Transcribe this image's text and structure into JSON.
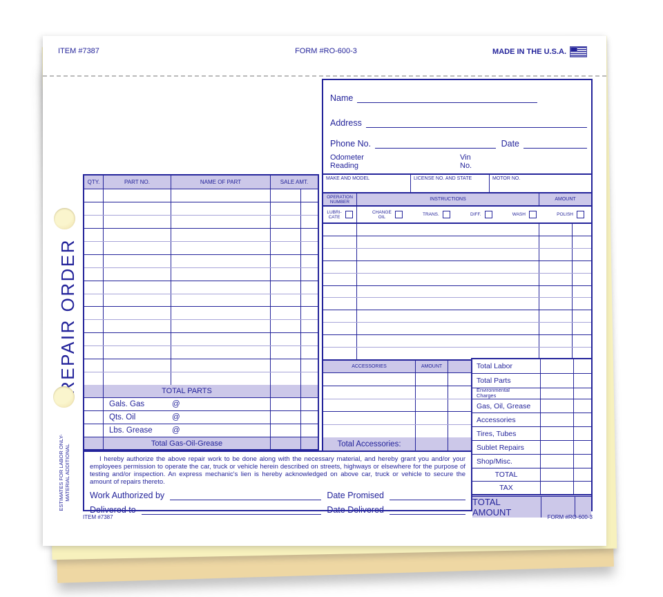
{
  "colors": {
    "ink": "#23239a",
    "header_fill": "#ccc8e9",
    "paper": "#ffffff",
    "copy_sheet_yellow": "#f7f1bd",
    "copy_sheet_tan": "#eed7a3"
  },
  "header": {
    "item_number": "ITEM #7387",
    "form_number": "FORM #RO-600-3",
    "made_in": "MADE IN THE U.S.A.",
    "flag_icon": "us-flag-icon"
  },
  "side": {
    "title": "REPAIR ORDER",
    "estimates_line_1": "ESTIMATES FOR LABOR ONLY-",
    "estimates_line_2": "MATERIAL ADDITIONAL"
  },
  "customer": {
    "name_label": "Name",
    "address_label": "Address",
    "phone_label": "Phone No.",
    "date_label": "Date",
    "odometer_label_line_1": "Odometer",
    "odometer_label_line_2": "Reading",
    "vin_label_line_1": "Vin",
    "vin_label_line_2": "No."
  },
  "vehicle": {
    "make_and_model_label": "MAKE AND MODEL",
    "license_label": "LICENSE NO. AND STATE",
    "motor_label": "MOTOR NO."
  },
  "operations": {
    "op_number_label_line_1": "OPERATION",
    "op_number_label_line_2": "NUMBER",
    "instructions_label": "INSTRUCTIONS",
    "amount_label": "AMOUNT",
    "row_count": 11,
    "checkboxes": [
      {
        "lines": [
          "LUBRI-",
          "CATE"
        ]
      },
      {
        "lines": [
          "CHANGE",
          "OIL"
        ]
      },
      {
        "lines": [
          "TRANS."
        ]
      },
      {
        "lines": [
          "DIFF."
        ]
      },
      {
        "lines": [
          "WASH"
        ]
      },
      {
        "lines": [
          "POLISH"
        ]
      }
    ]
  },
  "parts": {
    "qty_header": "QTY.",
    "part_no_header": "PART NO.",
    "name_header": "NAME OF PART",
    "sale_amt_header": "SALE AMT.",
    "row_count": 15,
    "total_parts_label": "TOTAL PARTS",
    "fluids": [
      {
        "label": "Gals. Gas",
        "at": "@"
      },
      {
        "label": "Qts. Oil",
        "at": "@"
      },
      {
        "label": "Lbs. Grease",
        "at": "@"
      }
    ],
    "total_gas_label": "Total Gas-Oil-Grease"
  },
  "accessories": {
    "header": "ACCESSORIES",
    "amount_header": "AMOUNT",
    "row_count": 5,
    "total_label": "Total Accessories:"
  },
  "totals": {
    "rows": [
      {
        "label": "Total Labor"
      },
      {
        "label": "Total Parts"
      },
      {
        "label": "Environmental",
        "label_line_2": "Charges",
        "style": "small"
      },
      {
        "label": "Gas, Oil, Grease"
      },
      {
        "label": "Accessories"
      },
      {
        "label": "Tires, Tubes"
      },
      {
        "label": "Sublet Repairs"
      },
      {
        "label": "Shop/Misc."
      },
      {
        "label": "TOTAL",
        "style": "center"
      },
      {
        "label": "TAX",
        "style": "center"
      }
    ],
    "total_amount_label": "TOTAL AMOUNT"
  },
  "authorization": {
    "text": "I hereby authorize the above repair work to be done along with the necessary material, and hereby grant you and/or your employees permission to operate the car, truck or vehicle herein described on streets, highways or elsewhere for the purpose of testing and/or inspection. An express mechanic's lien is hereby acknowledged on above car, truck or vehicle to secure the amount of repairs thereto.",
    "work_authorized_label": "Work Authorized by",
    "date_promised_label": "Date Promised",
    "delivered_to_label": "Delivered to",
    "date_delivered_label": "Date Delivered"
  },
  "footer": {
    "item_number": "ITEM #7387",
    "form_number": "FORM #RO-600-3"
  }
}
